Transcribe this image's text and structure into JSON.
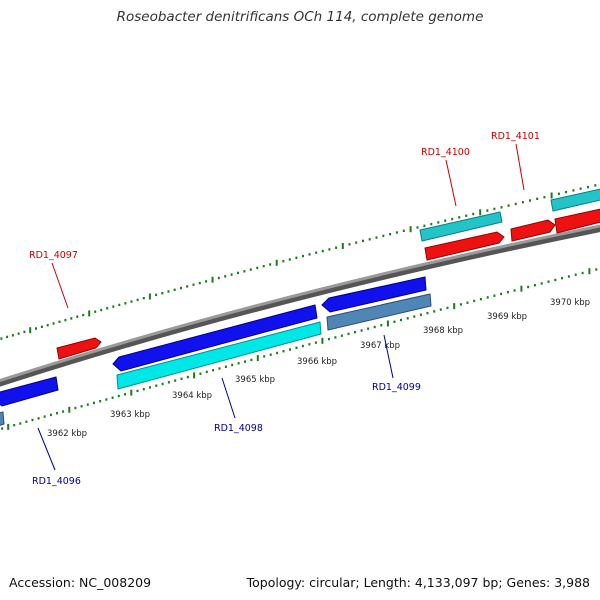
{
  "title": "Roseobacter denitrificans OCh 114, complete genome",
  "footer": {
    "accession": "Accession: NC_008209",
    "summary": "Topology: circular; Length: 4,133,097 bp; Genes: 3,988"
  },
  "colors": {
    "backbone": "#8a8a8a",
    "ticks": "#1d7a1d",
    "forward_cds": "#ee1111",
    "forward_gene": "#22c4c8",
    "reverse_cds": "#1111ee",
    "reverse_gene": "#00e7e7",
    "reverse_gene_pseudo": "#4f86b5",
    "forward_label": "#cc0000",
    "reverse_label": "#000099"
  },
  "tick_labels": [
    "3962 kbp",
    "3963 kbp",
    "3964 kbp",
    "3965 kbp",
    "3966 kbp",
    "3967 kbp",
    "3968 kbp",
    "3969 kbp",
    "3970 kbp"
  ],
  "gene_labels": {
    "rd1_4096": "RD1_4096",
    "rd1_4097": "RD1_4097",
    "rd1_4098": "RD1_4098",
    "rd1_4099": "RD1_4099",
    "rd1_4100": "RD1_4100",
    "rd1_4101": "RD1_4101"
  }
}
